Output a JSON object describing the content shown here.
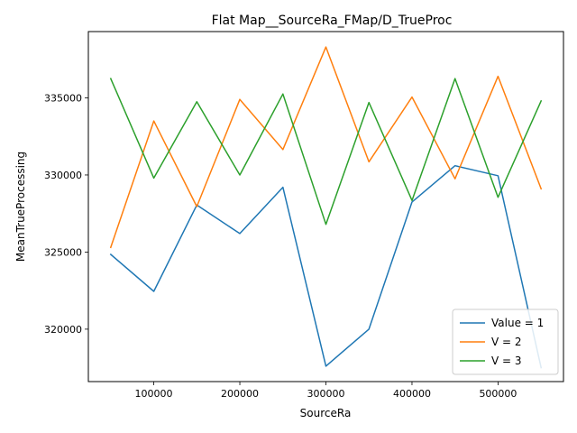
{
  "chart_data": {
    "type": "line",
    "title": "Flat Map__SourceRa_FMap/D_TrueProc",
    "xlabel": "SourceRa",
    "ylabel": "MeanTrueProcessing",
    "x": [
      50000,
      100000,
      150000,
      200000,
      250000,
      300000,
      350000,
      400000,
      450000,
      500000,
      550000
    ],
    "xlim": [
      24000,
      576000
    ],
    "ylim": [
      316600,
      339300
    ],
    "xticks": [
      100000,
      200000,
      300000,
      400000,
      500000
    ],
    "xtick_labels": [
      "100000",
      "200000",
      "300000",
      "400000",
      "500000"
    ],
    "yticks": [
      320000,
      325000,
      330000,
      335000
    ],
    "ytick_labels": [
      "320000",
      "325000",
      "330000",
      "335000"
    ],
    "grid": false,
    "legend_position": "lower-right",
    "series": [
      {
        "name": "Value = 1",
        "color": "#1f77b4",
        "values": [
          324850,
          322450,
          328050,
          326200,
          329200,
          317600,
          320000,
          328250,
          330600,
          329950,
          317500
        ]
      },
      {
        "name": "V = 2",
        "color": "#ff7f0e",
        "values": [
          325300,
          333500,
          327950,
          334900,
          331650,
          338300,
          330850,
          335050,
          329750,
          336400,
          329100
        ]
      },
      {
        "name": "V = 3",
        "color": "#2ca02c",
        "values": [
          336250,
          329800,
          334750,
          330000,
          335250,
          326800,
          334700,
          328350,
          336250,
          328550,
          334800
        ]
      }
    ]
  }
}
